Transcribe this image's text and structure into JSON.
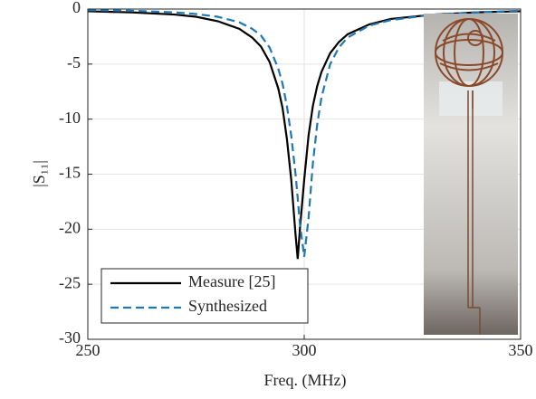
{
  "chart_data": {
    "type": "line",
    "x_label": "Freq. (MHz)",
    "y_label": "|S₁₁|",
    "x": [
      250,
      260,
      270,
      275,
      280,
      285,
      288,
      290,
      292,
      294,
      295,
      296,
      297,
      298,
      298.5,
      299,
      300,
      301,
      302,
      303,
      304,
      306,
      308,
      310,
      315,
      320,
      330,
      340,
      350
    ],
    "series": [
      {
        "name": "Measure [25]",
        "color": "#000000",
        "dash": "solid",
        "values": [
          -0.2,
          -0.3,
          -0.5,
          -0.7,
          -1.1,
          -1.8,
          -2.6,
          -3.4,
          -4.8,
          -7.2,
          -9,
          -11.8,
          -15.5,
          -20.5,
          -22.7,
          -20,
          -15.5,
          -11.5,
          -8.8,
          -7,
          -5.7,
          -4,
          -3,
          -2.3,
          -1.4,
          -0.9,
          -0.5,
          -0.3,
          -0.2
        ]
      },
      {
        "name": "Synthesized",
        "color": "#1f77b4",
        "dash": "dashed",
        "values": [
          -0.1,
          -0.15,
          -0.3,
          -0.45,
          -0.7,
          -1.2,
          -1.8,
          -2.4,
          -3.5,
          -5.4,
          -6.8,
          -8.8,
          -11.5,
          -15,
          -17.2,
          -19.5,
          -22.5,
          -19,
          -14,
          -10.5,
          -8,
          -5,
          -3.5,
          -2.6,
          -1.5,
          -1,
          -0.5,
          -0.3,
          -0.15
        ]
      }
    ],
    "xlim": [
      250,
      350
    ],
    "xticks": [
      250,
      300,
      350
    ],
    "ylim": [
      -30,
      0
    ],
    "yticks": [
      -30,
      -25,
      -20,
      -15,
      -10,
      -5,
      0
    ],
    "grid": true,
    "legend": "lower left"
  }
}
